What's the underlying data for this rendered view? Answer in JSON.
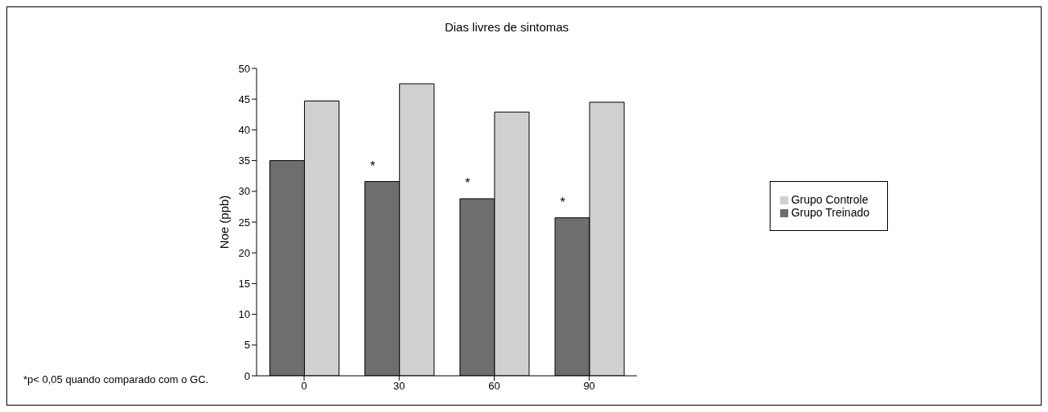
{
  "chart_data": {
    "type": "bar",
    "title": "Dias livres de sintomas",
    "ylabel": "Noe (ppb)",
    "categories": [
      "0",
      "30",
      "60",
      "90"
    ],
    "series": [
      {
        "name": "Grupo Treinado",
        "color": "#6e6e6e",
        "values": [
          35.0,
          31.6,
          28.8,
          25.7
        ]
      },
      {
        "name": "Grupo Controle",
        "color": "#d0d0d0",
        "values": [
          44.7,
          47.5,
          42.9,
          44.5
        ]
      }
    ],
    "ylim": [
      0,
      50
    ],
    "yticks": [
      0,
      5,
      10,
      15,
      20,
      25,
      30,
      35,
      40,
      45,
      50
    ],
    "grid": false,
    "legend": "right",
    "annotations": [
      {
        "text": "*",
        "x": "30",
        "y": 31.6
      },
      {
        "text": "*",
        "x": "60",
        "y": 28.8
      },
      {
        "text": "*",
        "x": "90",
        "y": 25.7
      },
      "*p< 0,05 quando comparado com o GC."
    ]
  }
}
